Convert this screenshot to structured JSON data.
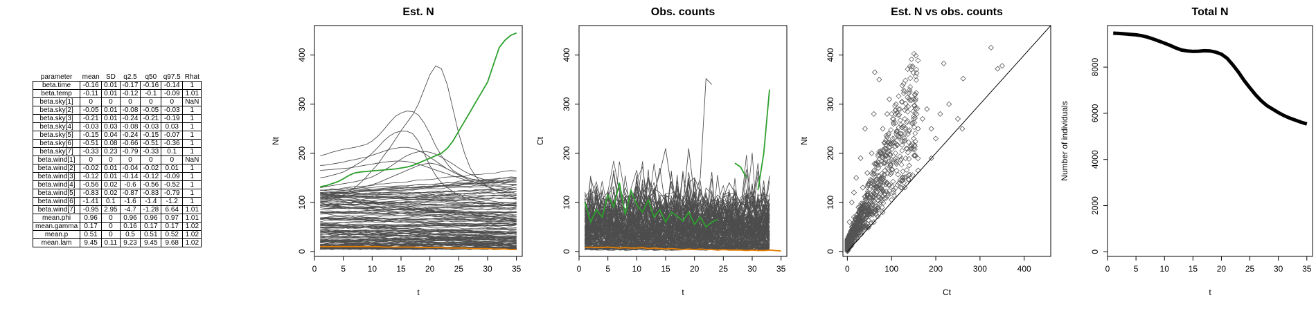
{
  "table": {
    "columns": [
      "parameter",
      "mean",
      "SD",
      "q2.5",
      "q50",
      "q97.5",
      "Rhat"
    ],
    "rows": [
      [
        "beta.time",
        "-0.16",
        "0.01",
        "-0.17",
        "-0.16",
        "-0.14",
        "1"
      ],
      [
        "beta.temp",
        "-0.11",
        "0.01",
        "-0.12",
        "-0.1",
        "-0.09",
        "1.01"
      ],
      [
        "beta.sky[1]",
        "0",
        "0",
        "0",
        "0",
        "0",
        "NaN"
      ],
      [
        "beta.sky[2]",
        "-0.05",
        "0.01",
        "-0.08",
        "-0.05",
        "-0.03",
        "1"
      ],
      [
        "beta.sky[3]",
        "-0.21",
        "0.01",
        "-0.24",
        "-0.21",
        "-0.19",
        "1"
      ],
      [
        "beta.sky[4]",
        "-0.03",
        "0.03",
        "-0.08",
        "-0.03",
        "0.03",
        "1"
      ],
      [
        "beta.sky[5]",
        "-0.15",
        "0.04",
        "-0.24",
        "-0.15",
        "-0.07",
        "1"
      ],
      [
        "beta.sky[6]",
        "-0.51",
        "0.08",
        "-0.66",
        "-0.51",
        "-0.36",
        "1"
      ],
      [
        "beta.sky[7]",
        "-0.33",
        "0.23",
        "-0.79",
        "-0.33",
        "0.1",
        "1"
      ],
      [
        "beta.wind[1]",
        "0",
        "0",
        "0",
        "0",
        "0",
        "NaN"
      ],
      [
        "beta.wind[2]",
        "-0.02",
        "0.01",
        "-0.04",
        "-0.02",
        "0.01",
        "1"
      ],
      [
        "beta.wind[3]",
        "-0.12",
        "0.01",
        "-0.14",
        "-0.12",
        "-0.09",
        "1"
      ],
      [
        "beta.wind[4]",
        "-0.56",
        "0.02",
        "-0.6",
        "-0.56",
        "-0.52",
        "1"
      ],
      [
        "beta.wind[5]",
        "-0.83",
        "0.02",
        "-0.87",
        "-0.83",
        "-0.79",
        "1"
      ],
      [
        "beta.wind[6]",
        "-1.41",
        "0.1",
        "-1.6",
        "-1.4",
        "-1.2",
        "1"
      ],
      [
        "beta.wind[7]",
        "-0.95",
        "2.95",
        "-4.7",
        "-1.28",
        "6.64",
        "1.01"
      ],
      [
        "mean.phi",
        "0.96",
        "0",
        "0.96",
        "0.96",
        "0.97",
        "1.01"
      ],
      [
        "mean.gamma",
        "0.17",
        "0",
        "0.16",
        "0.17",
        "0.17",
        "1.02"
      ],
      [
        "mean.p",
        "0.51",
        "0",
        "0.5",
        "0.51",
        "0.52",
        "1.02"
      ],
      [
        "mean.lam",
        "9.45",
        "0.11",
        "9.23",
        "9.45",
        "9.68",
        "1.02"
      ]
    ]
  },
  "colors": {
    "grey_lines": "#4d4d4d",
    "highlight_green": "#2ca02c",
    "highlight_orange": "#e67e00",
    "points": "#555555"
  },
  "chart_data": [
    {
      "type": "line",
      "title": "Est. N",
      "xlabel": "t",
      "ylabel": "Nt",
      "xlim": [
        0,
        36
      ],
      "ylim": [
        -10,
        460
      ],
      "xticks": [
        0,
        5,
        10,
        15,
        20,
        25,
        30,
        35
      ],
      "yticks": [
        0,
        100,
        200,
        300,
        400
      ],
      "series": [
        {
          "values": [
            195,
            198,
            202,
            205,
            208,
            210,
            212,
            215,
            218,
            225,
            235,
            248,
            262,
            275,
            282,
            286,
            285,
            278,
            262,
            240,
            215,
            195,
            178,
            165,
            158,
            152,
            148,
            146,
            145,
            145,
            146,
            148,
            150,
            150,
            150
          ]
        },
        {
          "values": [
            100,
            102,
            106,
            110,
            115,
            122,
            130,
            140,
            152,
            165,
            178,
            195,
            210,
            228,
            246,
            262,
            278,
            300,
            330,
            360,
            378,
            372,
            340,
            290,
            240,
            200,
            170,
            152,
            140,
            132,
            126,
            120,
            116,
            112,
            110
          ]
        },
        {
          "values": [
            150,
            152,
            155,
            158,
            162,
            168,
            175,
            182,
            190,
            200,
            212,
            225,
            235,
            242,
            245,
            245,
            240,
            225,
            200,
            175,
            155,
            140,
            130,
            122,
            115,
            110,
            106,
            103,
            100,
            98,
            96,
            95,
            95,
            95,
            95
          ]
        },
        {
          "values": [
            175,
            176,
            178,
            180,
            182,
            185,
            187,
            190,
            192,
            196,
            200,
            204,
            208,
            210,
            212,
            212,
            210,
            206,
            200,
            192,
            184,
            176,
            168,
            162,
            156,
            152,
            148,
            145,
            143,
            141,
            140,
            140,
            140,
            140,
            140
          ]
        },
        {
          "values": [
            165,
            166,
            167,
            168,
            169,
            170,
            172,
            174,
            176,
            178,
            180,
            182,
            183,
            184,
            184,
            183,
            181,
            178,
            174,
            170,
            166,
            162,
            158,
            154,
            150,
            146,
            143,
            140,
            138,
            136,
            134,
            132,
            130,
            128,
            126
          ]
        },
        {
          "values": [
            130,
            132,
            134,
            136,
            138,
            140,
            142,
            145,
            148,
            152,
            158,
            165,
            172,
            180,
            188,
            195,
            200,
            203,
            204,
            202,
            198,
            192,
            185,
            178,
            170,
            163,
            157,
            152,
            148,
            145,
            142,
            140,
            138,
            136,
            135
          ]
        },
        {
          "values": [
            120,
            121,
            122,
            123,
            124,
            126,
            128,
            130,
            133,
            136,
            140,
            145,
            150,
            155,
            160,
            165,
            170,
            175,
            178,
            180,
            178,
            174,
            168,
            162,
            156,
            150,
            145,
            140,
            136,
            132,
            128,
            125,
            122,
            120,
            118
          ]
        },
        {
          "name": "highlight-green",
          "color": "green",
          "values": [
            132,
            134,
            138,
            142,
            148,
            155,
            160,
            162,
            163,
            164,
            165,
            166,
            167,
            168,
            170,
            172,
            175,
            180,
            185,
            190,
            195,
            200,
            210,
            225,
            245,
            265,
            285,
            305,
            325,
            345,
            380,
            415,
            430,
            440,
            445
          ]
        },
        {
          "name": "highlight-orange",
          "color": "orange",
          "values": [
            10,
            10,
            10,
            10,
            10,
            10,
            10,
            10,
            10,
            10,
            10,
            9,
            9,
            9,
            9,
            9,
            9,
            8,
            8,
            8,
            8,
            8,
            7,
            7,
            7,
            7,
            6,
            6,
            6,
            6,
            5,
            5,
            5,
            4,
            4
          ]
        }
      ]
    },
    {
      "type": "line",
      "title": "Obs. counts",
      "xlabel": "t",
      "ylabel": "Ct",
      "xlim": [
        0,
        36
      ],
      "ylim": [
        -10,
        460
      ],
      "xticks": [
        0,
        5,
        10,
        15,
        20,
        25,
        30,
        35
      ],
      "yticks": [
        0,
        100,
        200,
        300,
        400
      ],
      "series": [
        {
          "values": [
            60,
            150,
            110,
            120,
            80,
            90,
            140,
            70,
            100,
            130,
            90,
            150,
            110,
            170,
            90,
            100,
            130,
            95,
            210,
            110,
            150,
            352,
            340,
            null,
            null,
            null,
            null,
            null,
            null,
            null,
            null,
            null,
            null,
            null,
            null
          ]
        },
        {
          "values": [
            80,
            90,
            70,
            100,
            85,
            120,
            95,
            130,
            100,
            140,
            110,
            150,
            120,
            160,
            210,
            130,
            110,
            100,
            140,
            150,
            120,
            100,
            90,
            80,
            110,
            140,
            120,
            100,
            90,
            80,
            100,
            120,
            90,
            null,
            null
          ]
        },
        {
          "name": "highlight-green-a",
          "color": "green",
          "values": [
            100,
            60,
            85,
            70,
            115,
            90,
            140,
            75,
            125,
            95,
            80,
            105,
            70,
            85,
            60,
            80,
            72,
            62,
            80,
            55,
            70,
            50,
            60,
            65,
            null,
            null,
            null,
            null,
            null,
            null,
            null,
            null,
            null,
            null,
            null
          ]
        },
        {
          "name": "highlight-green-b",
          "color": "green",
          "values": [
            null,
            null,
            null,
            null,
            null,
            null,
            null,
            null,
            null,
            null,
            null,
            null,
            null,
            null,
            null,
            null,
            null,
            null,
            null,
            null,
            null,
            null,
            null,
            null,
            null,
            null,
            180,
            172,
            150,
            null,
            125,
            200,
            330,
            null,
            null
          ]
        },
        {
          "name": "highlight-orange",
          "color": "orange",
          "values": [
            8,
            9,
            8,
            8,
            9,
            8,
            7,
            8,
            7,
            7,
            8,
            6,
            7,
            6,
            5,
            6,
            5,
            4,
            5,
            4,
            5,
            4,
            4,
            3,
            4,
            3,
            3,
            3,
            2,
            3,
            2,
            2,
            3,
            2,
            1
          ]
        }
      ]
    },
    {
      "type": "scatter",
      "title": "Est. N vs obs. counts",
      "xlabel": "Ct",
      "ylabel": "Nt",
      "xlim": [
        -10,
        460
      ],
      "ylim": [
        -10,
        460
      ],
      "xticks": [
        0,
        100,
        200,
        300,
        400
      ],
      "yticks": [
        0,
        100,
        200,
        300,
        400
      ],
      "points": [
        [
          62,
          365
        ],
        [
          72,
          350
        ],
        [
          325,
          415
        ],
        [
          340,
          372
        ],
        [
          350,
          378
        ],
        [
          218,
          383
        ],
        [
          262,
          352
        ],
        [
          95,
          310
        ],
        [
          110,
          300
        ],
        [
          150,
          310
        ],
        [
          180,
          290
        ],
        [
          210,
          280
        ],
        [
          250,
          270
        ],
        [
          130,
          270
        ],
        [
          160,
          250
        ],
        [
          200,
          230
        ],
        [
          150,
          230
        ],
        [
          190,
          250
        ],
        [
          90,
          280
        ],
        [
          60,
          280
        ],
        [
          40,
          250
        ],
        [
          80,
          250
        ],
        [
          120,
          240
        ],
        [
          170,
          270
        ],
        [
          230,
          300
        ],
        [
          260,
          250
        ],
        [
          55,
          200
        ],
        [
          85,
          210
        ],
        [
          110,
          180
        ],
        [
          140,
          175
        ],
        [
          30,
          190
        ],
        [
          20,
          150
        ],
        [
          45,
          160
        ],
        [
          70,
          170
        ],
        [
          100,
          160
        ],
        [
          125,
          150
        ],
        [
          15,
          120
        ],
        [
          35,
          130
        ],
        [
          60,
          130
        ],
        [
          90,
          140
        ],
        [
          10,
          100
        ],
        [
          25,
          90
        ],
        [
          50,
          110
        ],
        [
          75,
          100
        ],
        [
          5,
          60
        ],
        [
          15,
          70
        ],
        [
          30,
          65
        ],
        [
          45,
          85
        ],
        [
          3,
          30
        ],
        [
          8,
          40
        ],
        [
          20,
          45
        ],
        [
          35,
          55
        ],
        [
          2,
          10
        ],
        [
          5,
          15
        ],
        [
          12,
          25
        ],
        [
          25,
          35
        ],
        [
          60,
          60
        ],
        [
          80,
          80
        ],
        [
          100,
          105
        ],
        [
          130,
          130
        ],
        [
          160,
          165
        ],
        [
          190,
          190
        ]
      ],
      "reference_line": "y = x"
    },
    {
      "type": "line",
      "title": "Total N",
      "xlabel": "t",
      "ylabel": "Number of individuals",
      "xlim": [
        0,
        36
      ],
      "ylim": [
        -200,
        9800
      ],
      "xticks": [
        0,
        5,
        10,
        15,
        20,
        25,
        30,
        35
      ],
      "yticks": [
        0,
        2000,
        4000,
        6000,
        8000
      ],
      "series": [
        {
          "values": [
            9470,
            9460,
            9440,
            9420,
            9400,
            9360,
            9300,
            9220,
            9130,
            9040,
            8940,
            8830,
            8740,
            8700,
            8680,
            8690,
            8710,
            8700,
            8650,
            8560,
            8380,
            8100,
            7780,
            7420,
            7100,
            6800,
            6540,
            6330,
            6180,
            6030,
            5900,
            5790,
            5700,
            5610,
            5540
          ]
        }
      ]
    }
  ]
}
